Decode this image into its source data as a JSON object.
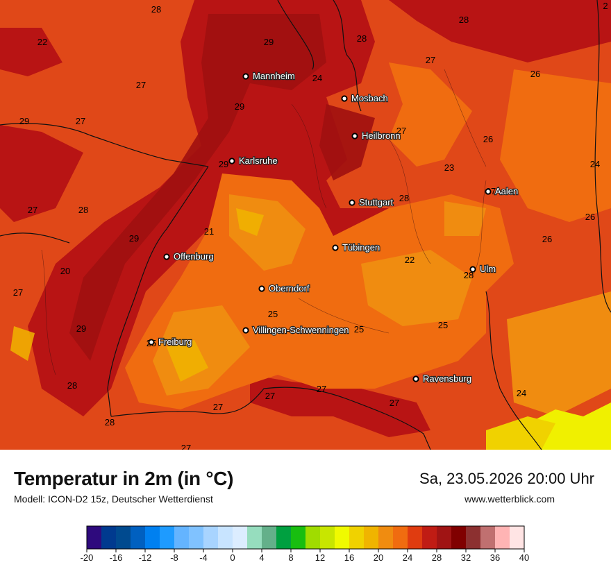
{
  "title": "Temperatur in 2m (in °C)",
  "model": "Modell: ICON-D2 15z, Deutscher Wetterdienst",
  "datetime": "Sa, 23.05.2026 20:00 Uhr",
  "website": "www.wetterblick.com",
  "cities": [
    {
      "name": "Mannheim"
    },
    {
      "name": "Mosbach"
    },
    {
      "name": "Heilbronn"
    },
    {
      "name": "Karlsruhe"
    },
    {
      "name": "Aalen"
    },
    {
      "name": "Stuttgart"
    },
    {
      "name": "Tübingen"
    },
    {
      "name": "Offenburg"
    },
    {
      "name": "Ulm"
    },
    {
      "name": "Oberndorf"
    },
    {
      "name": "Villingen-Schwenningen"
    },
    {
      "name": "Freiburg"
    },
    {
      "name": "Ravensburg"
    }
  ],
  "isotherm_labels": [
    "28",
    "22",
    "29",
    "28",
    "27",
    "28",
    "26",
    "2",
    "27",
    "24",
    "29",
    "29",
    "27",
    "27",
    "26",
    "23",
    "24",
    "29",
    "27",
    "28",
    "28",
    "26",
    "29",
    "21",
    "27",
    "26",
    "20",
    "22",
    "27",
    "28",
    "25",
    "25",
    "29",
    "25",
    "25",
    "28",
    "27",
    "27",
    "27",
    "24",
    "28",
    "27"
  ],
  "colorbar": {
    "ticks": [
      "-20",
      "-16",
      "-12",
      "-8",
      "-4",
      "0",
      "4",
      "8",
      "12",
      "16",
      "20",
      "24",
      "28",
      "32",
      "36",
      "40"
    ],
    "colors": [
      "#2e0a7d",
      "#003a8f",
      "#004a8f",
      "#0060c0",
      "#0080f0",
      "#1e9bff",
      "#64b4ff",
      "#80c2ff",
      "#a8d4ff",
      "#c8e4ff",
      "#dcedff",
      "#96ddbe",
      "#64b08a",
      "#00a040",
      "#18be10",
      "#a0dc00",
      "#c8e600",
      "#f0fa00",
      "#f0d200",
      "#f0b400",
      "#f08c10",
      "#f06c10",
      "#e03c10",
      "#c01c14",
      "#a01414",
      "#800000",
      "#8c3030",
      "#c07070",
      "#ffb4b4",
      "#ffe4e4"
    ]
  },
  "map_colors": {
    "base": "#e04818",
    "dark": "#b81414",
    "mid": "#f06c10",
    "warm": "#f08c10",
    "light": "#f0b400",
    "yellow": "#f0f000"
  }
}
